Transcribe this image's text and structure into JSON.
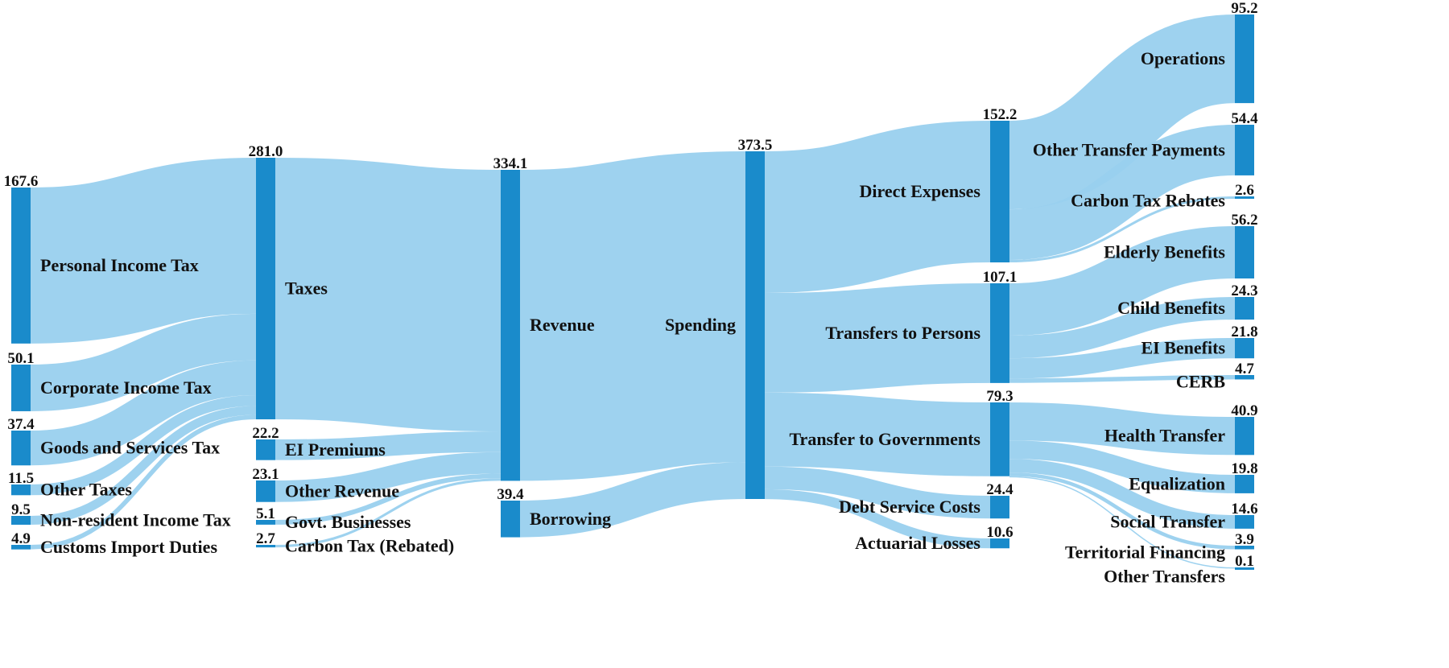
{
  "chart_data": {
    "type": "sankey",
    "value_unit": "",
    "colors": {
      "node": "#1a8bcb",
      "link": "#99d0ee"
    },
    "nodes": [
      {
        "id": "pit",
        "label": "Personal Income Tax",
        "value": "167.6",
        "column": 0
      },
      {
        "id": "cit",
        "label": "Corporate Income Tax",
        "value": "50.1",
        "column": 0
      },
      {
        "id": "gst",
        "label": "Goods and Services Tax",
        "value": "37.4",
        "column": 0
      },
      {
        "id": "ot",
        "label": "Other Taxes",
        "value": "11.5",
        "column": 0
      },
      {
        "id": "nrit",
        "label": "Non-resident Income Tax",
        "value": "9.5",
        "column": 0
      },
      {
        "id": "cid",
        "label": "Customs Import Duties",
        "value": "4.9",
        "column": 0
      },
      {
        "id": "tax",
        "label": "Taxes",
        "value": "281.0",
        "column": 1
      },
      {
        "id": "eip",
        "label": "EI Premiums",
        "value": "22.2",
        "column": 1
      },
      {
        "id": "orv",
        "label": "Other Revenue",
        "value": "23.1",
        "column": 1
      },
      {
        "id": "gb",
        "label": "Govt. Businesses",
        "value": "5.1",
        "column": 1
      },
      {
        "id": "ctr",
        "label": "Carbon Tax (Rebated)",
        "value": "2.7",
        "column": 1
      },
      {
        "id": "rev",
        "label": "Revenue",
        "value": "334.1",
        "column": 2
      },
      {
        "id": "bor",
        "label": "Borrowing",
        "value": "39.4",
        "column": 2
      },
      {
        "id": "spd",
        "label": "Spending",
        "value": "373.5",
        "column": 3
      },
      {
        "id": "de",
        "label": "Direct Expenses",
        "value": "152.2",
        "column": 4
      },
      {
        "id": "ttp",
        "label": "Transfers to Persons",
        "value": "107.1",
        "column": 4
      },
      {
        "id": "ttg",
        "label": "Transfer to Governments",
        "value": "79.3",
        "column": 4
      },
      {
        "id": "dsc",
        "label": "Debt Service Costs",
        "value": "24.4",
        "column": 4
      },
      {
        "id": "act",
        "label": "Actuarial Losses",
        "value": "10.6",
        "column": 4
      },
      {
        "id": "ops",
        "label": "Operations",
        "value": "95.2",
        "column": 5
      },
      {
        "id": "otp",
        "label": "Other Transfer Payments",
        "value": "54.4",
        "column": 5
      },
      {
        "id": "ctrb",
        "label": "Carbon Tax Rebates",
        "value": "2.6",
        "column": 5
      },
      {
        "id": "eld",
        "label": "Elderly Benefits",
        "value": "56.2",
        "column": 5
      },
      {
        "id": "chb",
        "label": "Child Benefits",
        "value": "24.3",
        "column": 5
      },
      {
        "id": "eib",
        "label": "EI Benefits",
        "value": "21.8",
        "column": 5
      },
      {
        "id": "cerb",
        "label": "CERB",
        "value": "4.7",
        "column": 5
      },
      {
        "id": "hlt",
        "label": "Health Transfer",
        "value": "40.9",
        "column": 5
      },
      {
        "id": "eqz",
        "label": "Equalization",
        "value": "19.8",
        "column": 5
      },
      {
        "id": "soc",
        "label": "Social Transfer",
        "value": "14.6",
        "column": 5
      },
      {
        "id": "ter",
        "label": "Territorial Financing",
        "value": "3.9",
        "column": 5
      },
      {
        "id": "oth",
        "label": "Other Transfers",
        "value": "0.1",
        "column": 5
      }
    ],
    "links": [
      {
        "source": "pit",
        "target": "tax",
        "value": 167.6
      },
      {
        "source": "cit",
        "target": "tax",
        "value": 50.1
      },
      {
        "source": "gst",
        "target": "tax",
        "value": 37.4
      },
      {
        "source": "ot",
        "target": "tax",
        "value": 11.5
      },
      {
        "source": "nrit",
        "target": "tax",
        "value": 9.5
      },
      {
        "source": "cid",
        "target": "tax",
        "value": 4.9
      },
      {
        "source": "tax",
        "target": "rev",
        "value": 281.0
      },
      {
        "source": "eip",
        "target": "rev",
        "value": 22.2
      },
      {
        "source": "orv",
        "target": "rev",
        "value": 23.1
      },
      {
        "source": "gb",
        "target": "rev",
        "value": 5.1
      },
      {
        "source": "ctr",
        "target": "rev",
        "value": 2.7
      },
      {
        "source": "rev",
        "target": "spd",
        "value": 334.1
      },
      {
        "source": "bor",
        "target": "spd",
        "value": 39.4
      },
      {
        "source": "spd",
        "target": "de",
        "value": 152.2
      },
      {
        "source": "spd",
        "target": "ttp",
        "value": 107.1
      },
      {
        "source": "spd",
        "target": "ttg",
        "value": 79.3
      },
      {
        "source": "spd",
        "target": "dsc",
        "value": 24.4
      },
      {
        "source": "spd",
        "target": "act",
        "value": 10.6
      },
      {
        "source": "de",
        "target": "ops",
        "value": 95.2
      },
      {
        "source": "de",
        "target": "otp",
        "value": 54.4
      },
      {
        "source": "de",
        "target": "ctrb",
        "value": 2.6
      },
      {
        "source": "ttp",
        "target": "eld",
        "value": 56.2
      },
      {
        "source": "ttp",
        "target": "chb",
        "value": 24.3
      },
      {
        "source": "ttp",
        "target": "eib",
        "value": 21.8
      },
      {
        "source": "ttp",
        "target": "cerb",
        "value": 4.7
      },
      {
        "source": "ttg",
        "target": "hlt",
        "value": 40.9
      },
      {
        "source": "ttg",
        "target": "eqz",
        "value": 19.8
      },
      {
        "source": "ttg",
        "target": "soc",
        "value": 14.6
      },
      {
        "source": "ttg",
        "target": "ter",
        "value": 3.9
      },
      {
        "source": "ttg",
        "target": "oth",
        "value": 0.1
      }
    ]
  }
}
